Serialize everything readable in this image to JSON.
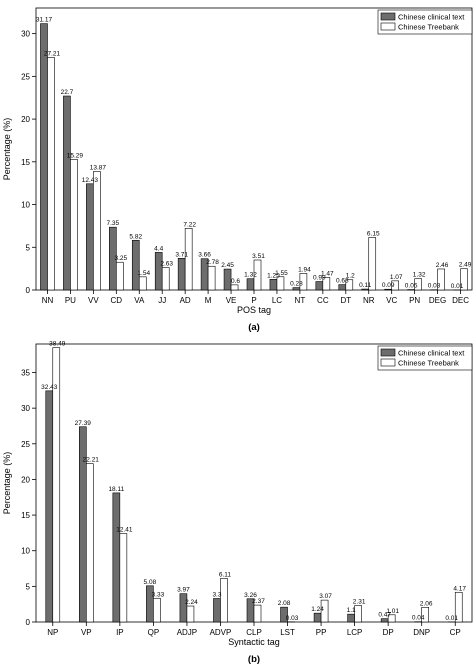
{
  "chart_data": [
    {
      "type": "bar",
      "panel_label": "(a)",
      "xlabel": "POS tag",
      "ylabel": "Percentage (%)",
      "ylim": [
        0,
        33
      ],
      "yticks": [
        0,
        5,
        10,
        15,
        20,
        25,
        30
      ],
      "grid": false,
      "legend_position": "top-right",
      "categories": [
        "NN",
        "PU",
        "VV",
        "CD",
        "VA",
        "JJ",
        "AD",
        "M",
        "VE",
        "P",
        "LC",
        "NT",
        "CC",
        "DT",
        "NR",
        "VC",
        "PN",
        "DEG",
        "DEC"
      ],
      "series": [
        {
          "name": "Chinese clinical text",
          "color": "#6d6d6d",
          "values": [
            31.17,
            22.7,
            12.43,
            7.35,
            5.82,
            4.4,
            3.71,
            3.66,
            2.45,
            1.32,
            1.25,
            0.28,
            0.99,
            0.63,
            0.11,
            0.09,
            0.05,
            0.03,
            0.01
          ]
        },
        {
          "name": "Chinese Treebank",
          "color": "#ffffff",
          "values": [
            27.21,
            15.29,
            13.87,
            3.25,
            1.54,
            2.63,
            7.22,
            2.78,
            0.6,
            3.51,
            1.55,
            1.94,
            1.47,
            1.2,
            6.15,
            1.07,
            1.32,
            2.46,
            2.49
          ]
        }
      ]
    },
    {
      "type": "bar",
      "panel_label": "(b)",
      "xlabel": "Syntactic tag",
      "ylabel": "Percentage (%)",
      "ylim": [
        0,
        39
      ],
      "yticks": [
        0,
        5,
        10,
        15,
        20,
        25,
        30,
        35
      ],
      "grid": false,
      "legend_position": "top-right",
      "categories": [
        "NP",
        "VP",
        "IP",
        "QP",
        "ADJP",
        "ADVP",
        "CLP",
        "LST",
        "PP",
        "LCP",
        "DP",
        "DNP",
        "CP"
      ],
      "series": [
        {
          "name": "Chinese clinical text",
          "color": "#6d6d6d",
          "values": [
            32.43,
            27.39,
            18.11,
            5.08,
            3.97,
            3.3,
            3.26,
            2.08,
            1.24,
            1.1,
            0.47,
            0.04,
            0.01
          ]
        },
        {
          "name": "Chinese Treebank",
          "color": "#ffffff",
          "values": [
            38.49,
            22.21,
            12.41,
            3.33,
            2.24,
            6.11,
            2.37,
            0.03,
            3.07,
            2.31,
            1.01,
            2.06,
            4.17
          ]
        }
      ]
    }
  ]
}
